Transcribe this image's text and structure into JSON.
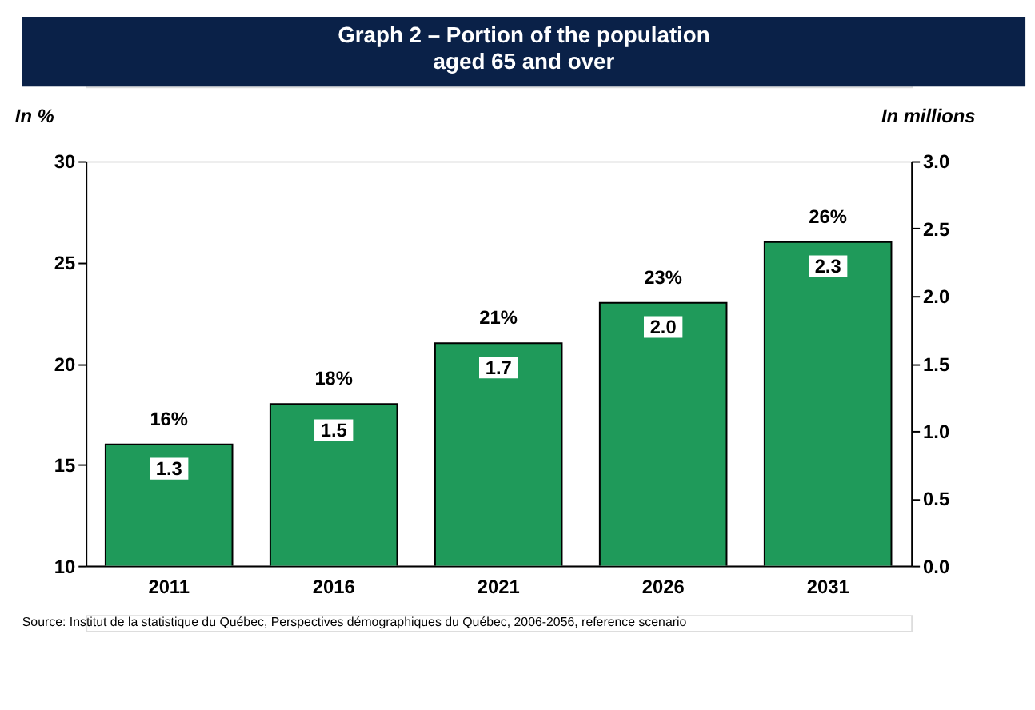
{
  "chart_data": {
    "type": "bar",
    "title": "Graph 2 – Portion of the population aged 65 and over",
    "ylabel": "In %",
    "y2label": "In millions",
    "categories": [
      "2011",
      "2016",
      "2021",
      "2026",
      "2031"
    ],
    "series": [
      {
        "color": "#1f9a5a",
        "values": [
          16,
          18,
          21,
          23,
          26
        ],
        "value_labels": [
          "16%",
          "18%",
          "21%",
          "23%",
          "26%"
        ]
      }
    ],
    "ylim": [
      10,
      30
    ],
    "yticks": [
      10,
      15,
      20,
      25,
      30
    ],
    "y2lim": [
      0,
      3
    ],
    "y2ticks": [
      {
        "value": 0,
        "label": "0.0"
      },
      {
        "value": 0.5,
        "label": "0.5"
      },
      {
        "value": 1,
        "label": "1.0"
      },
      {
        "value": 1.5,
        "label": "1.5"
      },
      {
        "value": 2,
        "label": "2.0"
      },
      {
        "value": 2.5,
        "label": "2.5"
      },
      {
        "value": 3,
        "label": "3.0"
      }
    ],
    "grid": false,
    "annotations": [
      {
        "text": "1.3",
        "x": "2011",
        "y": 14.8
      },
      {
        "text": "1.5",
        "x": "2016",
        "y": 16.7
      },
      {
        "text": "1.7",
        "x": "2021",
        "y": 19.8
      },
      {
        "text": "2.0",
        "x": "2026",
        "y": 21.8
      },
      {
        "text": "2.3",
        "x": "2031",
        "y": 24.8
      },
      "Source: Institut de la statistique du Québec, Perspectives démographiques du Québec, 2006-2056, reference scenario"
    ]
  }
}
